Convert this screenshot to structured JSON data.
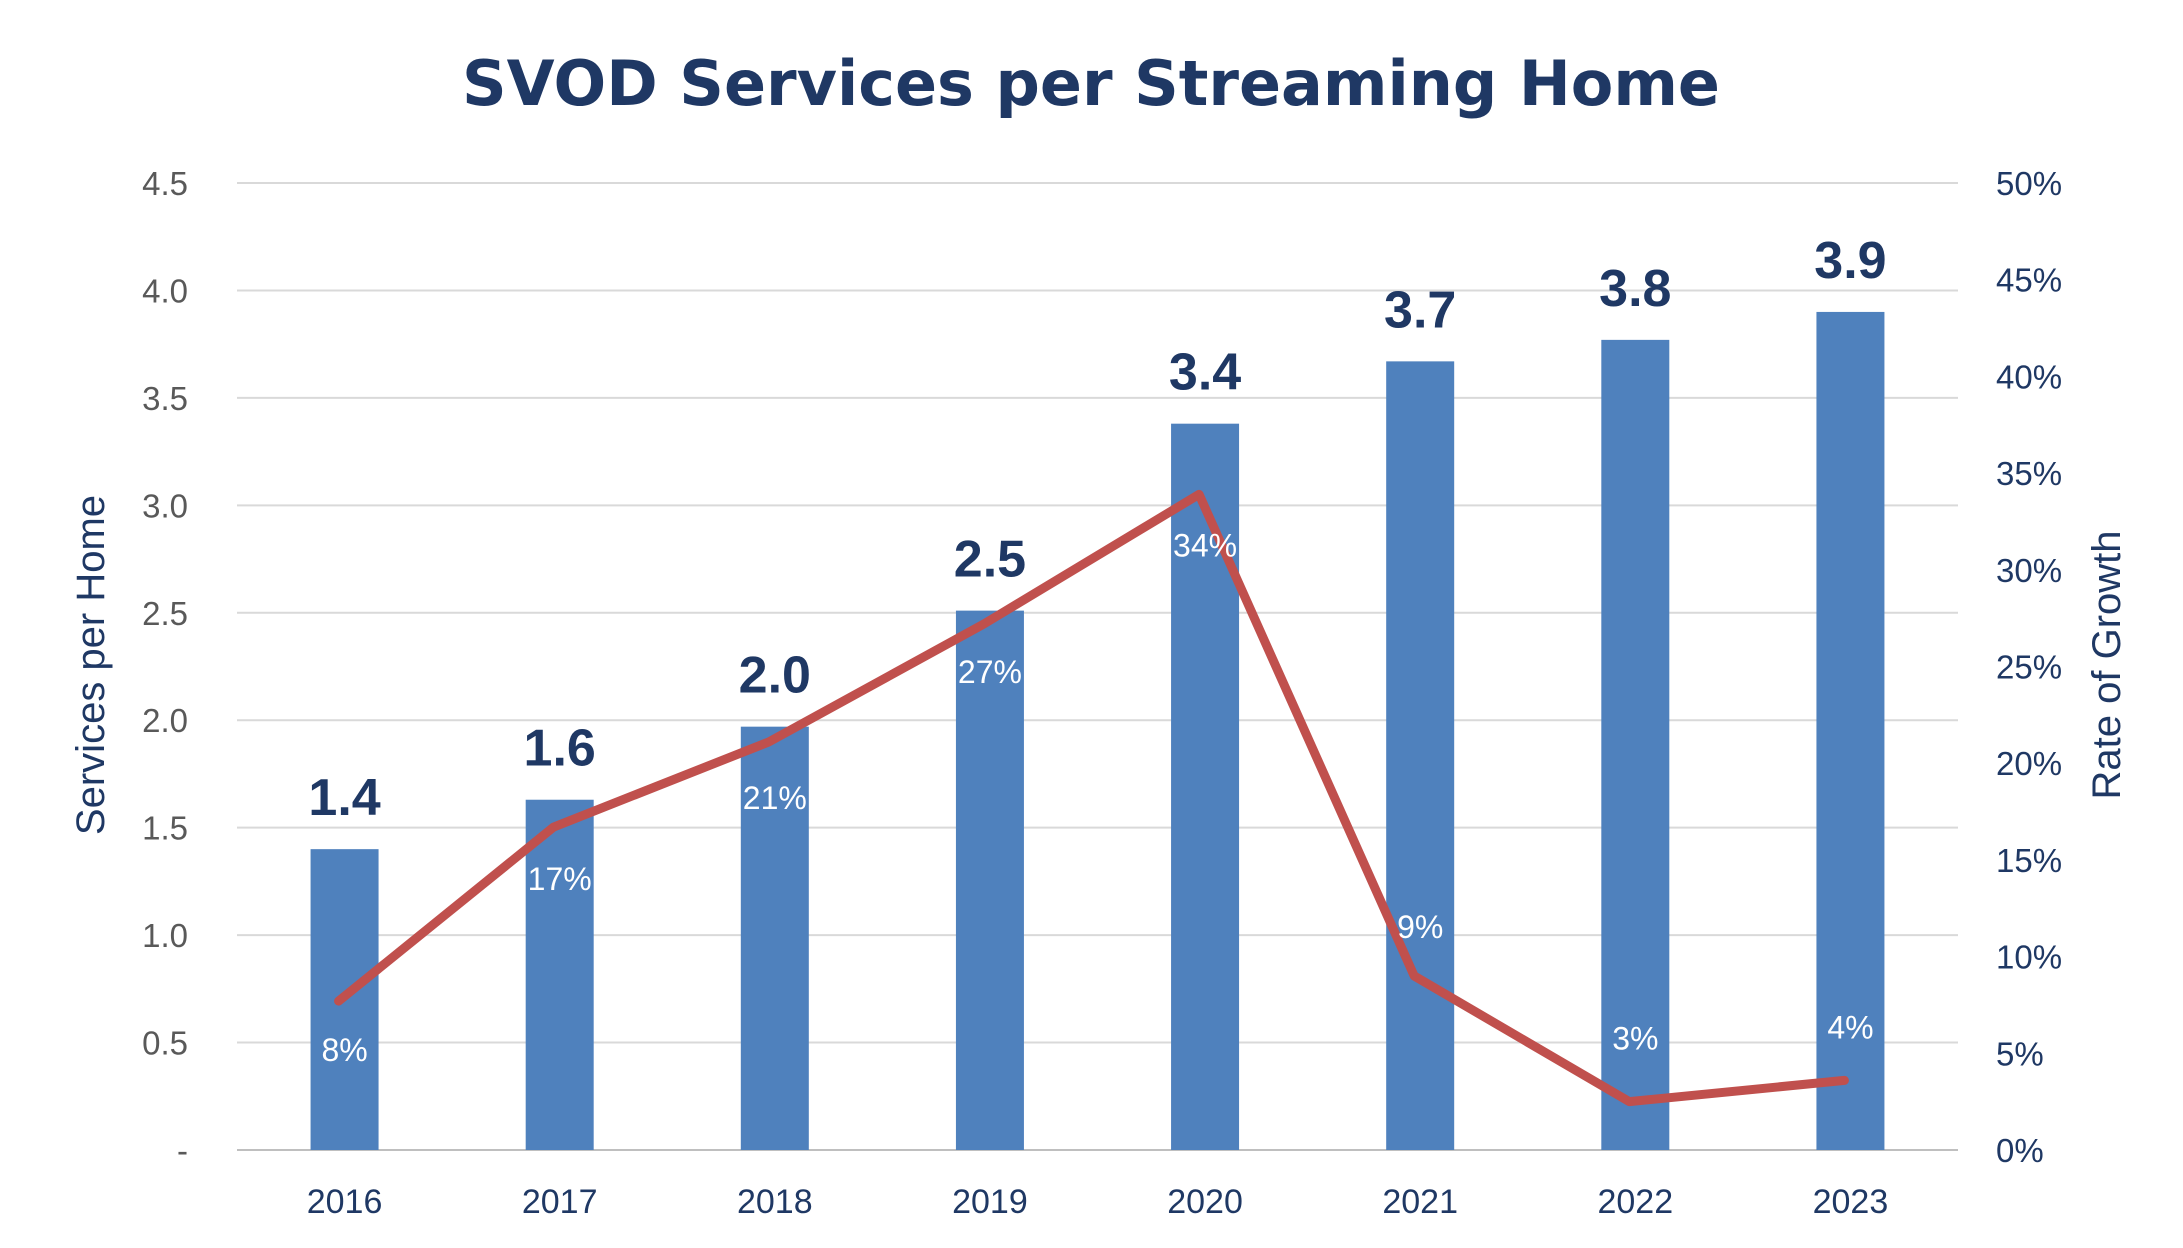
{
  "chart_data": {
    "type": "bar",
    "title": "SVOD Services per Streaming Home",
    "categories": [
      "2016",
      "2017",
      "2018",
      "2019",
      "2020",
      "2021",
      "2022",
      "2023"
    ],
    "series": [
      {
        "name": "Services per Home",
        "type": "bar",
        "axis": "left",
        "color": "#4f81bd",
        "values": [
          1.4,
          1.63,
          1.97,
          2.51,
          3.38,
          3.67,
          3.77,
          3.9
        ],
        "labels": [
          "1.4",
          "1.6",
          "2.0",
          "2.5",
          "3.4",
          "3.7",
          "3.8",
          "3.9"
        ]
      },
      {
        "name": "Rate of Growth",
        "type": "line",
        "axis": "right",
        "color": "#c0504d",
        "values": [
          7.7,
          16.7,
          21.1,
          27.2,
          33.9,
          9.0,
          2.5,
          3.6
        ],
        "labels": [
          "8%",
          "17%",
          "21%",
          "27%",
          "34%",
          "9%",
          "3%",
          "4%"
        ]
      }
    ],
    "ylabel": "Services per Home",
    "y2label": "Rate of Growth",
    "ylim": [
      0,
      4.5
    ],
    "y2lim": [
      0,
      50
    ],
    "y_ticks": [
      "-",
      "0.5",
      "1.0",
      "1.5",
      "2.0",
      "2.5",
      "3.0",
      "3.5",
      "4.0",
      "4.5"
    ],
    "y2_ticks": [
      "0%",
      "5%",
      "10%",
      "15%",
      "20%",
      "25%",
      "30%",
      "35%",
      "40%",
      "45%",
      "50%"
    ],
    "grid": true,
    "legend": "none"
  }
}
